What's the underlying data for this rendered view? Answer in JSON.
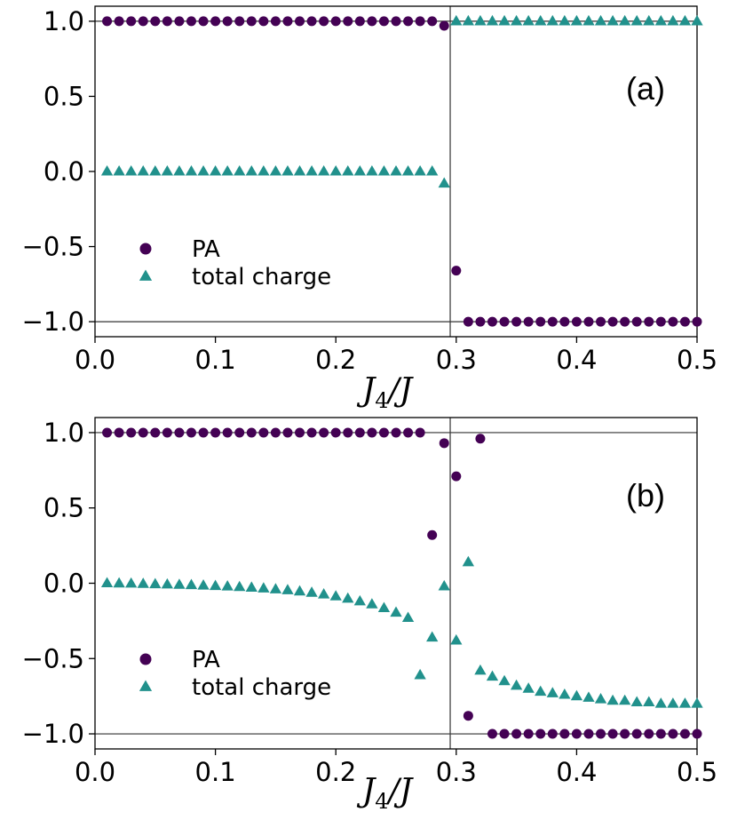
{
  "colors": {
    "pa": "#440154",
    "charge": "#21918c",
    "axis": "#000000",
    "refline": "#333333"
  },
  "chart_data": [
    {
      "type": "scatter",
      "panel_label": "(a)",
      "x_label_main": "J",
      "x_label_sub": "4",
      "x_label_tail": "/J",
      "xlim": [
        0.0,
        0.5
      ],
      "ylim": [
        -1.1,
        1.1
      ],
      "x_ticks": [
        "0.0",
        "0.1",
        "0.2",
        "0.3",
        "0.4",
        "0.5"
      ],
      "x_tick_values": [
        0.0,
        0.1,
        0.2,
        0.3,
        0.4,
        0.5
      ],
      "y_ticks": [
        "1.0",
        "0.5",
        "0.0",
        "−0.5",
        "−1.0"
      ],
      "y_tick_values": [
        1.0,
        0.5,
        0.0,
        -0.5,
        -1.0
      ],
      "hlines": [
        1.0,
        -1.0
      ],
      "vline": 0.295,
      "legend": [
        "PA",
        "total charge"
      ],
      "series": [
        {
          "name": "PA",
          "x": [
            0.01,
            0.02,
            0.03,
            0.04,
            0.05,
            0.06,
            0.07,
            0.08,
            0.09,
            0.1,
            0.11,
            0.12,
            0.13,
            0.14,
            0.15,
            0.16,
            0.17,
            0.18,
            0.19,
            0.2,
            0.21,
            0.22,
            0.23,
            0.24,
            0.25,
            0.26,
            0.27,
            0.28,
            0.29,
            0.3,
            0.31,
            0.32,
            0.33,
            0.34,
            0.35,
            0.36,
            0.37,
            0.38,
            0.39,
            0.4,
            0.41,
            0.42,
            0.43,
            0.44,
            0.45,
            0.46,
            0.47,
            0.48,
            0.49,
            0.5
          ],
          "y": [
            1,
            1,
            1,
            1,
            1,
            1,
            1,
            1,
            1,
            1,
            1,
            1,
            1,
            1,
            1,
            1,
            1,
            1,
            1,
            1,
            1,
            1,
            1,
            1,
            1,
            1,
            1,
            1,
            0.97,
            -0.66,
            -1,
            -1,
            -1,
            -1,
            -1,
            -1,
            -1,
            -1,
            -1,
            -1,
            -1,
            -1,
            -1,
            -1,
            -1,
            -1,
            -1,
            -1,
            -1,
            -1
          ]
        },
        {
          "name": "total charge",
          "x": [
            0.01,
            0.02,
            0.03,
            0.04,
            0.05,
            0.06,
            0.07,
            0.08,
            0.09,
            0.1,
            0.11,
            0.12,
            0.13,
            0.14,
            0.15,
            0.16,
            0.17,
            0.18,
            0.19,
            0.2,
            0.21,
            0.22,
            0.23,
            0.24,
            0.25,
            0.26,
            0.27,
            0.28,
            0.29,
            0.3,
            0.31,
            0.32,
            0.33,
            0.34,
            0.35,
            0.36,
            0.37,
            0.38,
            0.39,
            0.4,
            0.41,
            0.42,
            0.43,
            0.44,
            0.45,
            0.46,
            0.47,
            0.48,
            0.49,
            0.5
          ],
          "y": [
            0,
            0,
            0,
            0,
            0,
            0,
            0,
            0,
            0,
            0,
            0,
            0,
            0,
            0,
            0,
            0,
            0,
            0,
            0,
            0,
            0,
            0,
            0,
            0,
            0,
            0,
            0,
            0,
            -0.08,
            1,
            1,
            1,
            1,
            1,
            1,
            1,
            1,
            1,
            1,
            1,
            1,
            1,
            1,
            1,
            1,
            1,
            1,
            1,
            1,
            1
          ]
        }
      ]
    },
    {
      "type": "scatter",
      "panel_label": "(b)",
      "x_label_main": "J",
      "x_label_sub": "4",
      "x_label_tail": "/J",
      "xlim": [
        0.0,
        0.5
      ],
      "ylim": [
        -1.1,
        1.1
      ],
      "x_ticks": [
        "0.0",
        "0.1",
        "0.2",
        "0.3",
        "0.4",
        "0.5"
      ],
      "x_tick_values": [
        0.0,
        0.1,
        0.2,
        0.3,
        0.4,
        0.5
      ],
      "y_ticks": [
        "1.0",
        "0.5",
        "0.0",
        "−0.5",
        "−1.0"
      ],
      "y_tick_values": [
        1.0,
        0.5,
        0.0,
        -0.5,
        -1.0
      ],
      "hlines": [
        1.0,
        -1.0
      ],
      "vline": 0.295,
      "legend": [
        "PA",
        "total charge"
      ],
      "series": [
        {
          "name": "PA",
          "x": [
            0.01,
            0.02,
            0.03,
            0.04,
            0.05,
            0.06,
            0.07,
            0.08,
            0.09,
            0.1,
            0.11,
            0.12,
            0.13,
            0.14,
            0.15,
            0.16,
            0.17,
            0.18,
            0.19,
            0.2,
            0.21,
            0.22,
            0.23,
            0.24,
            0.25,
            0.26,
            0.27,
            0.28,
            0.29,
            0.3,
            0.31,
            0.32,
            0.33,
            0.34,
            0.35,
            0.36,
            0.37,
            0.38,
            0.39,
            0.4,
            0.41,
            0.42,
            0.43,
            0.44,
            0.45,
            0.46,
            0.47,
            0.48,
            0.49,
            0.5
          ],
          "y": [
            1,
            1,
            1,
            1,
            1,
            1,
            1,
            1,
            1,
            1,
            1,
            1,
            1,
            1,
            1,
            1,
            1,
            1,
            1,
            1,
            1,
            1,
            1,
            1,
            1,
            1,
            1,
            0.32,
            0.93,
            0.71,
            -0.88,
            0.96,
            -1,
            -1,
            -1,
            -1,
            -1,
            -1,
            -1,
            -1,
            -1,
            -1,
            -1,
            -1,
            -1,
            -1,
            -1,
            -1,
            -1,
            -1
          ]
        },
        {
          "name": "total charge",
          "x": [
            0.01,
            0.02,
            0.03,
            0.04,
            0.05,
            0.06,
            0.07,
            0.08,
            0.09,
            0.1,
            0.11,
            0.12,
            0.13,
            0.14,
            0.15,
            0.16,
            0.17,
            0.18,
            0.19,
            0.2,
            0.21,
            0.22,
            0.23,
            0.24,
            0.25,
            0.26,
            0.27,
            0.28,
            0.29,
            0.3,
            0.31,
            0.32,
            0.33,
            0.34,
            0.35,
            0.36,
            0.37,
            0.38,
            0.39,
            0.4,
            0.41,
            0.42,
            0.43,
            0.44,
            0.45,
            0.46,
            0.47,
            0.48,
            0.49,
            0.5
          ],
          "y": [
            0,
            -0.001,
            -0.002,
            -0.004,
            -0.006,
            -0.008,
            -0.01,
            -0.012,
            -0.015,
            -0.018,
            -0.021,
            -0.025,
            -0.029,
            -0.034,
            -0.04,
            -0.046,
            -0.054,
            -0.063,
            -0.074,
            -0.087,
            -0.102,
            -0.12,
            -0.14,
            -0.165,
            -0.195,
            -0.23,
            -0.61,
            -0.36,
            -0.02,
            -0.38,
            0.14,
            -0.58,
            -0.62,
            -0.65,
            -0.68,
            -0.7,
            -0.72,
            -0.73,
            -0.74,
            -0.75,
            -0.76,
            -0.77,
            -0.78,
            -0.78,
            -0.79,
            -0.79,
            -0.8,
            -0.8,
            -0.8,
            -0.8
          ]
        }
      ]
    }
  ]
}
